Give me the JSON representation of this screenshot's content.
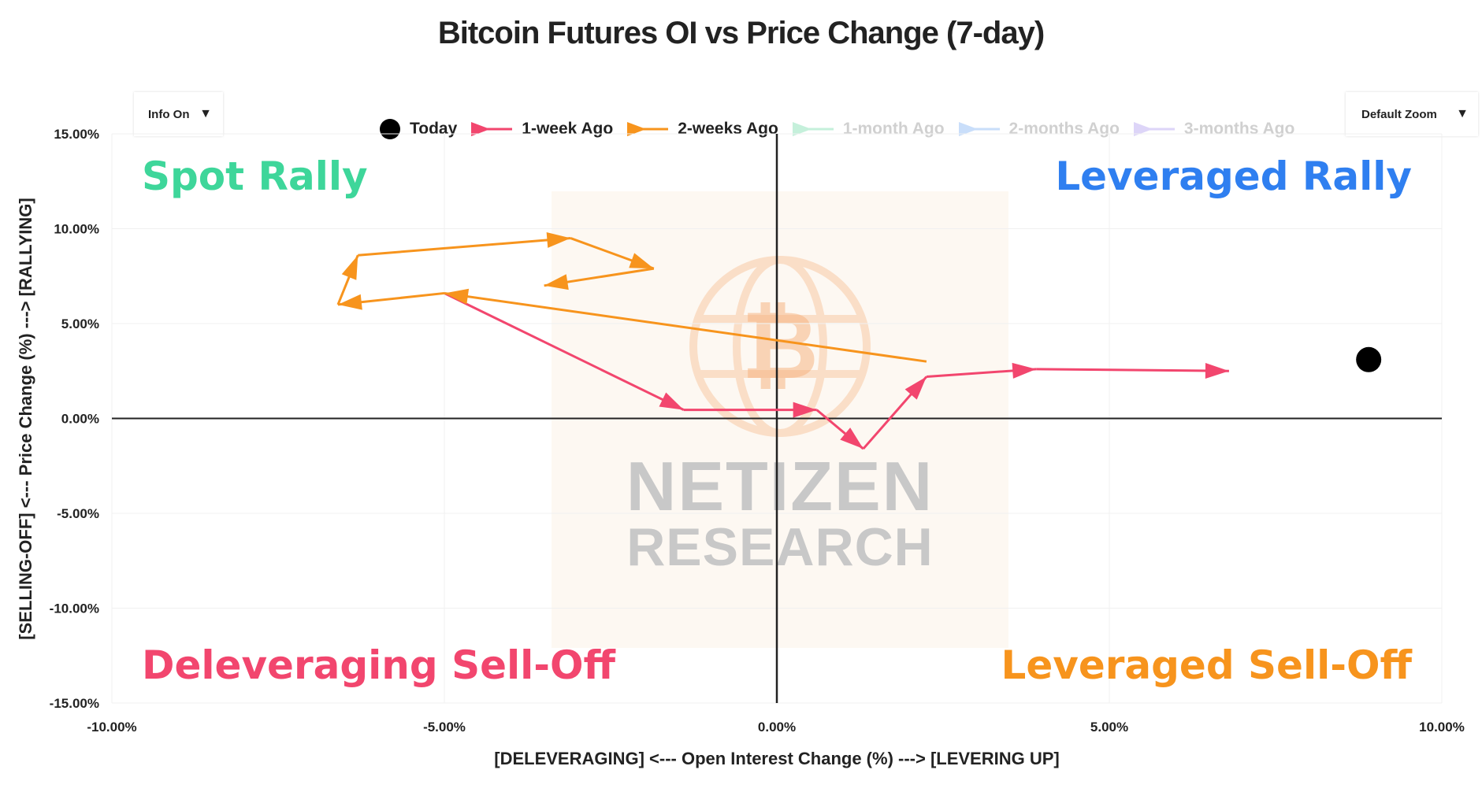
{
  "chart_data": {
    "type": "scatter",
    "title": "Bitcoin Futures OI vs Price Change (7-day)",
    "xlabel": "[DELEVERAGING]     <---  Open Interest Change (%)   --->     [LEVERING UP]",
    "ylabel": "[SELLING-OFF]    <---   Price Change (%)   --->    [RALLYING]",
    "xlim": [
      -10,
      10
    ],
    "ylim": [
      -15,
      15
    ],
    "x_ticks": [
      "-10.00%",
      "-5.00%",
      "0.00%",
      "5.00%",
      "10.00%"
    ],
    "y_ticks": [
      "15.00%",
      "10.00%",
      "5.00%",
      "0.00%",
      "-5.00%",
      "-10.00%",
      "-15.00%"
    ],
    "quadrants": {
      "top_left": "Spot Rally",
      "top_right": "Leveraged Rally",
      "bottom_left": "Deleveraging Sell-Off",
      "bottom_right": "Leveraged Sell-Off"
    },
    "series": [
      {
        "name": "Today",
        "type": "marker",
        "color": "#000000",
        "points": [
          [
            8.9,
            3.1
          ]
        ]
      },
      {
        "name": "1-week Ago",
        "type": "arrows",
        "color": "#f2466e",
        "points": [
          [
            -5.0,
            6.6
          ],
          [
            -1.4,
            0.45
          ],
          [
            0.6,
            0.45
          ],
          [
            1.3,
            -1.6
          ],
          [
            2.25,
            2.2
          ],
          [
            3.9,
            2.6
          ],
          [
            6.8,
            2.5
          ]
        ]
      },
      {
        "name": "2-weeks Ago",
        "type": "arrows",
        "color": "#f7941d",
        "points": [
          [
            2.25,
            3.0
          ],
          [
            -5.0,
            6.6
          ],
          [
            -6.6,
            6.0
          ],
          [
            -6.3,
            8.6
          ],
          [
            -3.1,
            9.5
          ],
          [
            -1.85,
            7.9
          ],
          [
            -3.5,
            7.0
          ]
        ]
      },
      {
        "name": "1-month Ago",
        "type": "arrows",
        "color": "#7fe0b0",
        "points": []
      },
      {
        "name": "2-months Ago",
        "type": "arrows",
        "color": "#8ab8f5",
        "points": []
      },
      {
        "name": "3-months Ago",
        "type": "arrows",
        "color": "#b6a4f0",
        "points": []
      }
    ]
  },
  "legend": [
    {
      "label": "Today",
      "color": "#000000",
      "kind": "dot",
      "active": true
    },
    {
      "label": "1-week Ago",
      "color": "#f2466e",
      "kind": "arrow",
      "active": true
    },
    {
      "label": "2-weeks Ago",
      "color": "#f7941d",
      "kind": "arrow",
      "active": true
    },
    {
      "label": "1-month Ago",
      "color": "#7fe0b0",
      "kind": "arrow",
      "active": false
    },
    {
      "label": "2-months Ago",
      "color": "#8ab8f5",
      "kind": "arrow",
      "active": false
    },
    {
      "label": "3-months Ago",
      "color": "#b6a4f0",
      "kind": "arrow",
      "active": false
    }
  ],
  "controls": {
    "info_label": "Info On",
    "zoom_label": "Default Zoom",
    "caret": "▼"
  },
  "watermark": {
    "line1": "NETIZEN",
    "line2": "RESEARCH"
  },
  "colors": {
    "spot_rally": "#3ed69a",
    "leveraged_rally": "#2f7ff0",
    "deleveraging": "#f2466e",
    "leveraged_selloff": "#f7941d",
    "axis": "#222222"
  }
}
